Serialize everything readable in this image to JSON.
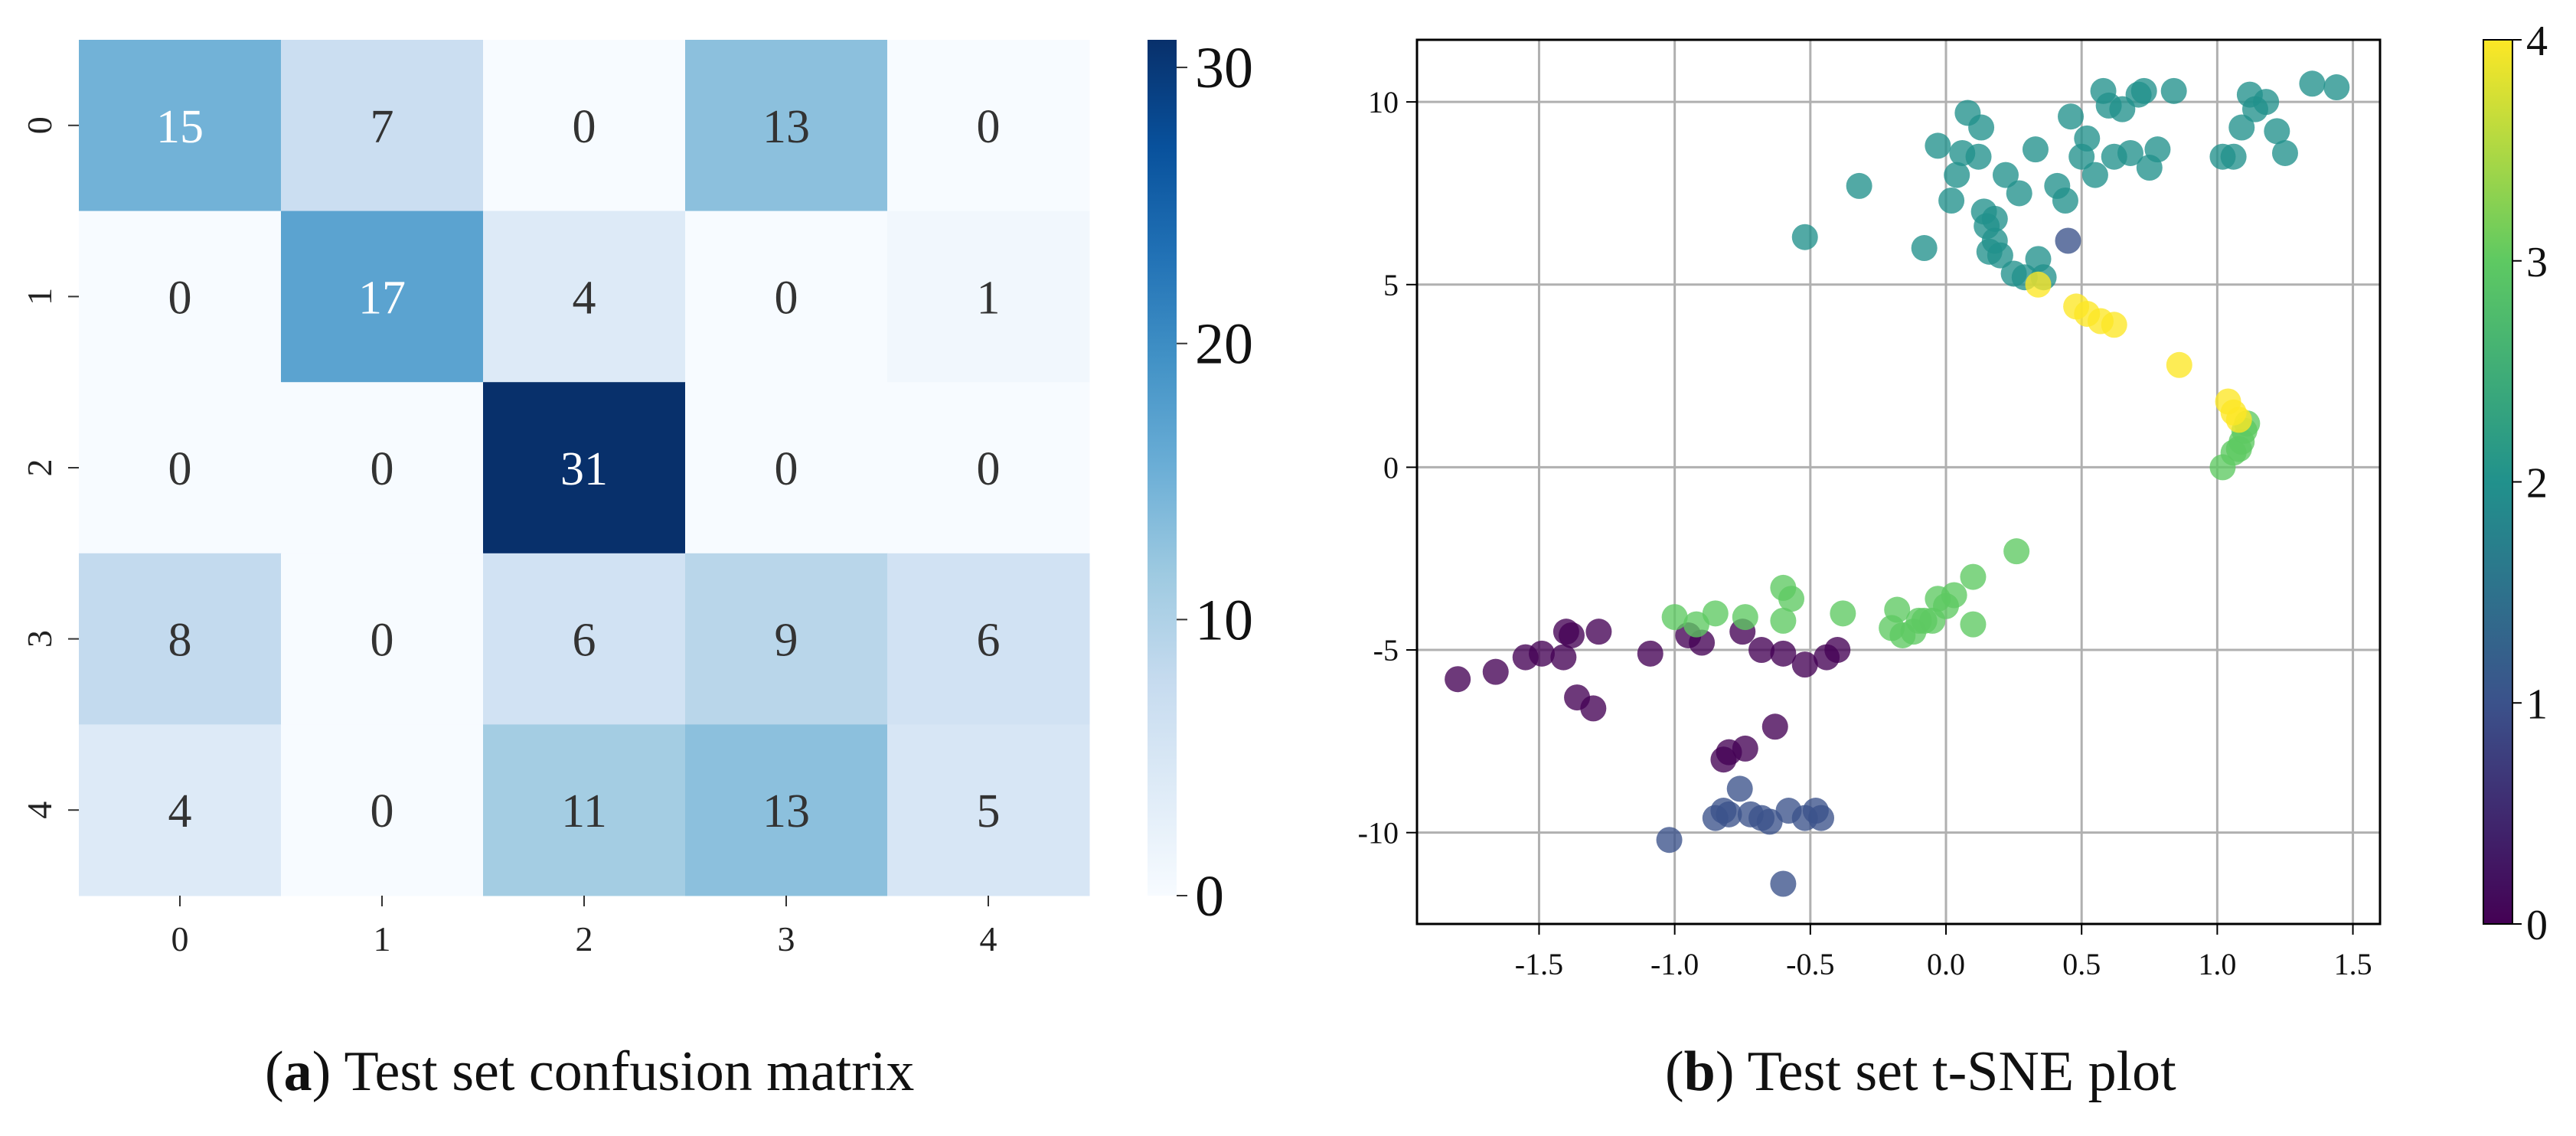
{
  "chart_data": [
    {
      "type": "heatmap",
      "panel": "a",
      "title": "",
      "xlabel": "",
      "ylabel": "",
      "x_ticks": [
        "0",
        "1",
        "2",
        "3",
        "4"
      ],
      "y_ticks": [
        "0",
        "1",
        "2",
        "3",
        "4"
      ],
      "matrix": [
        [
          15,
          7,
          0,
          13,
          0
        ],
        [
          0,
          17,
          4,
          0,
          1
        ],
        [
          0,
          0,
          31,
          0,
          0
        ],
        [
          8,
          0,
          6,
          9,
          6
        ],
        [
          4,
          0,
          11,
          13,
          5
        ]
      ],
      "colorbar": {
        "min": 0,
        "max": 31,
        "ticks": [
          0,
          10,
          20,
          30
        ],
        "tick_labels": [
          "0",
          "10",
          "20",
          "30"
        ],
        "colormap": "Blues"
      },
      "colors": {
        "low": "#f7fbff",
        "high": "#08306b",
        "text_dark": "#333333",
        "text_light": "#ffffff"
      }
    },
    {
      "type": "scatter",
      "panel": "b",
      "title": "",
      "xlabel": "",
      "ylabel": "",
      "xlim": [
        -1.95,
        1.6
      ],
      "ylim": [
        -12.5,
        11.7
      ],
      "x_ticks": [
        -1.5,
        -1.0,
        -0.5,
        0.0,
        0.5,
        1.0,
        1.5
      ],
      "x_tick_labels": [
        "-1.5",
        "-1.0",
        "-0.5",
        "0.0",
        "0.5",
        "1.0",
        "1.5"
      ],
      "y_ticks": [
        -10,
        -5,
        0,
        5,
        10
      ],
      "y_tick_labels": [
        "-10",
        "-5",
        "0",
        "5",
        "10"
      ],
      "grid": true,
      "colorbar": {
        "min": 0,
        "max": 4,
        "ticks": [
          0,
          1,
          2,
          3,
          4
        ],
        "tick_labels": [
          "0",
          "1",
          "2",
          "3",
          "4"
        ],
        "colormap": "viridis"
      },
      "series": [
        {
          "name": "0",
          "color": "#440154",
          "points": [
            [
              -1.8,
              -5.8
            ],
            [
              -1.66,
              -5.6
            ],
            [
              -1.55,
              -5.2
            ],
            [
              -1.49,
              -5.1
            ],
            [
              -1.41,
              -5.2
            ],
            [
              -1.4,
              -4.5
            ],
            [
              -1.38,
              -4.6
            ],
            [
              -1.36,
              -6.3
            ],
            [
              -1.3,
              -6.6
            ],
            [
              -1.28,
              -4.5
            ],
            [
              -1.09,
              -5.1
            ],
            [
              -0.95,
              -4.6
            ],
            [
              -0.9,
              -4.8
            ],
            [
              -0.75,
              -4.5
            ],
            [
              -0.68,
              -5.0
            ],
            [
              -0.6,
              -5.1
            ],
            [
              -0.52,
              -5.4
            ],
            [
              -0.44,
              -5.2
            ],
            [
              -0.4,
              -5.0
            ],
            [
              -0.82,
              -8.0
            ],
            [
              -0.8,
              -7.8
            ],
            [
              -0.74,
              -7.7
            ],
            [
              -0.63,
              -7.1
            ]
          ]
        },
        {
          "name": "1",
          "color": "#3b528b",
          "points": [
            [
              -1.02,
              -10.2
            ],
            [
              -0.85,
              -9.6
            ],
            [
              -0.82,
              -9.4
            ],
            [
              -0.8,
              -9.5
            ],
            [
              -0.76,
              -8.8
            ],
            [
              -0.72,
              -9.5
            ],
            [
              -0.68,
              -9.6
            ],
            [
              -0.65,
              -9.7
            ],
            [
              -0.58,
              -9.4
            ],
            [
              -0.52,
              -9.6
            ],
            [
              -0.48,
              -9.4
            ],
            [
              -0.46,
              -9.6
            ],
            [
              -0.6,
              -11.4
            ],
            [
              0.45,
              6.2
            ]
          ]
        },
        {
          "name": "2",
          "color": "#21918c",
          "points": [
            [
              -0.52,
              6.3
            ],
            [
              -0.32,
              7.7
            ],
            [
              -0.08,
              6.0
            ],
            [
              -0.03,
              8.8
            ],
            [
              0.02,
              7.3
            ],
            [
              0.04,
              8.0
            ],
            [
              0.06,
              8.6
            ],
            [
              0.08,
              9.7
            ],
            [
              0.12,
              8.5
            ],
            [
              0.13,
              9.3
            ],
            [
              0.14,
              7.0
            ],
            [
              0.15,
              6.6
            ],
            [
              0.16,
              5.9
            ],
            [
              0.18,
              6.8
            ],
            [
              0.18,
              6.2
            ],
            [
              0.2,
              5.8
            ],
            [
              0.22,
              8.0
            ],
            [
              0.25,
              5.3
            ],
            [
              0.27,
              7.5
            ],
            [
              0.29,
              5.2
            ],
            [
              0.33,
              8.7
            ],
            [
              0.34,
              5.7
            ],
            [
              0.36,
              5.2
            ],
            [
              0.41,
              7.7
            ],
            [
              0.44,
              7.3
            ],
            [
              0.46,
              9.6
            ],
            [
              0.5,
              8.5
            ],
            [
              0.52,
              9.0
            ],
            [
              0.55,
              8.0
            ],
            [
              0.58,
              10.3
            ],
            [
              0.6,
              9.9
            ],
            [
              0.62,
              8.5
            ],
            [
              0.65,
              9.8
            ],
            [
              0.68,
              8.6
            ],
            [
              0.71,
              10.2
            ],
            [
              0.73,
              10.3
            ],
            [
              0.75,
              8.2
            ],
            [
              0.78,
              8.7
            ],
            [
              0.84,
              10.3
            ],
            [
              1.02,
              8.5
            ],
            [
              1.06,
              8.5
            ],
            [
              1.09,
              9.3
            ],
            [
              1.12,
              10.2
            ],
            [
              1.14,
              9.8
            ],
            [
              1.18,
              10.0
            ],
            [
              1.22,
              9.2
            ],
            [
              1.25,
              8.6
            ],
            [
              1.35,
              10.5
            ],
            [
              1.44,
              10.4
            ]
          ]
        },
        {
          "name": "3",
          "color": "#5ec962",
          "points": [
            [
              -1.0,
              -4.1
            ],
            [
              -0.92,
              -4.3
            ],
            [
              -0.85,
              -4.0
            ],
            [
              -0.74,
              -4.1
            ],
            [
              -0.6,
              -3.3
            ],
            [
              -0.6,
              -4.2
            ],
            [
              -0.57,
              -3.6
            ],
            [
              -0.38,
              -4.0
            ],
            [
              -0.2,
              -4.4
            ],
            [
              -0.18,
              -3.9
            ],
            [
              -0.16,
              -4.6
            ],
            [
              -0.12,
              -4.5
            ],
            [
              -0.1,
              -4.2
            ],
            [
              -0.08,
              -4.2
            ],
            [
              -0.05,
              -4.2
            ],
            [
              -0.03,
              -3.6
            ],
            [
              0.0,
              -3.8
            ],
            [
              0.03,
              -3.5
            ],
            [
              0.1,
              -3.0
            ],
            [
              0.1,
              -4.3
            ],
            [
              0.26,
              -2.3
            ],
            [
              1.02,
              0.0
            ],
            [
              1.06,
              0.4
            ],
            [
              1.08,
              0.5
            ],
            [
              1.09,
              0.7
            ],
            [
              1.1,
              1.0
            ],
            [
              1.11,
              1.2
            ]
          ]
        },
        {
          "name": "4",
          "color": "#fde725",
          "points": [
            [
              0.34,
              5.0
            ],
            [
              0.48,
              4.4
            ],
            [
              0.52,
              4.2
            ],
            [
              0.57,
              4.0
            ],
            [
              0.62,
              3.9
            ],
            [
              0.86,
              2.8
            ],
            [
              1.04,
              1.8
            ],
            [
              1.06,
              1.5
            ],
            [
              1.08,
              1.3
            ]
          ]
        }
      ]
    }
  ],
  "captions": {
    "a": {
      "label": "a",
      "text": " Test set confusion matrix"
    },
    "b": {
      "label": "b",
      "text": " Test set t-SNE plot"
    }
  }
}
